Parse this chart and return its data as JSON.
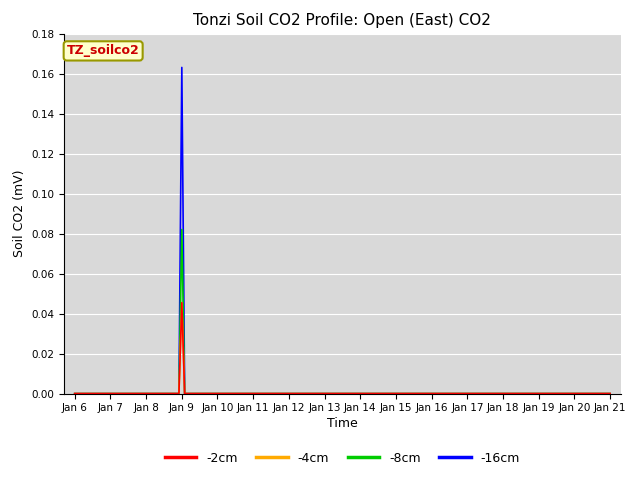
{
  "title": "Tonzi Soil CO2 Profile: Open (East) CO2",
  "xlabel": "Time",
  "ylabel": "Soil CO2 (mV)",
  "ylim": [
    0.0,
    0.18
  ],
  "background_color": "#d9d9d9",
  "label_text": "TZ_soilco2",
  "label_bg": "#ffffcc",
  "label_fg": "#cc0000",
  "legend_entries": [
    "-2cm",
    "-4cm",
    "-8cm",
    "-16cm"
  ],
  "line_colors": [
    "#ff0000",
    "#ffaa00",
    "#00cc00",
    "#0000ff"
  ],
  "spike_index": 3,
  "spike_values": [
    0.046,
    0.046,
    0.083,
    0.165
  ],
  "num_days": 16,
  "tick_labels": [
    "Jan 6",
    "Jan 7",
    "Jan 8",
    "Jan 9",
    "Jan 10",
    "Jan 11",
    "Jan 12",
    "Jan 13",
    "Jan 14",
    "Jan 15",
    "Jan 16",
    "Jan 17",
    "Jan 18",
    "Jan 19",
    "Jan 20",
    "Jan 21"
  ],
  "grid_color": "#ffffff",
  "title_fontsize": 11,
  "tick_fontsize": 7.5,
  "ylabel_fontsize": 9,
  "xlabel_fontsize": 9,
  "label_fontsize": 9,
  "legend_fontsize": 9
}
